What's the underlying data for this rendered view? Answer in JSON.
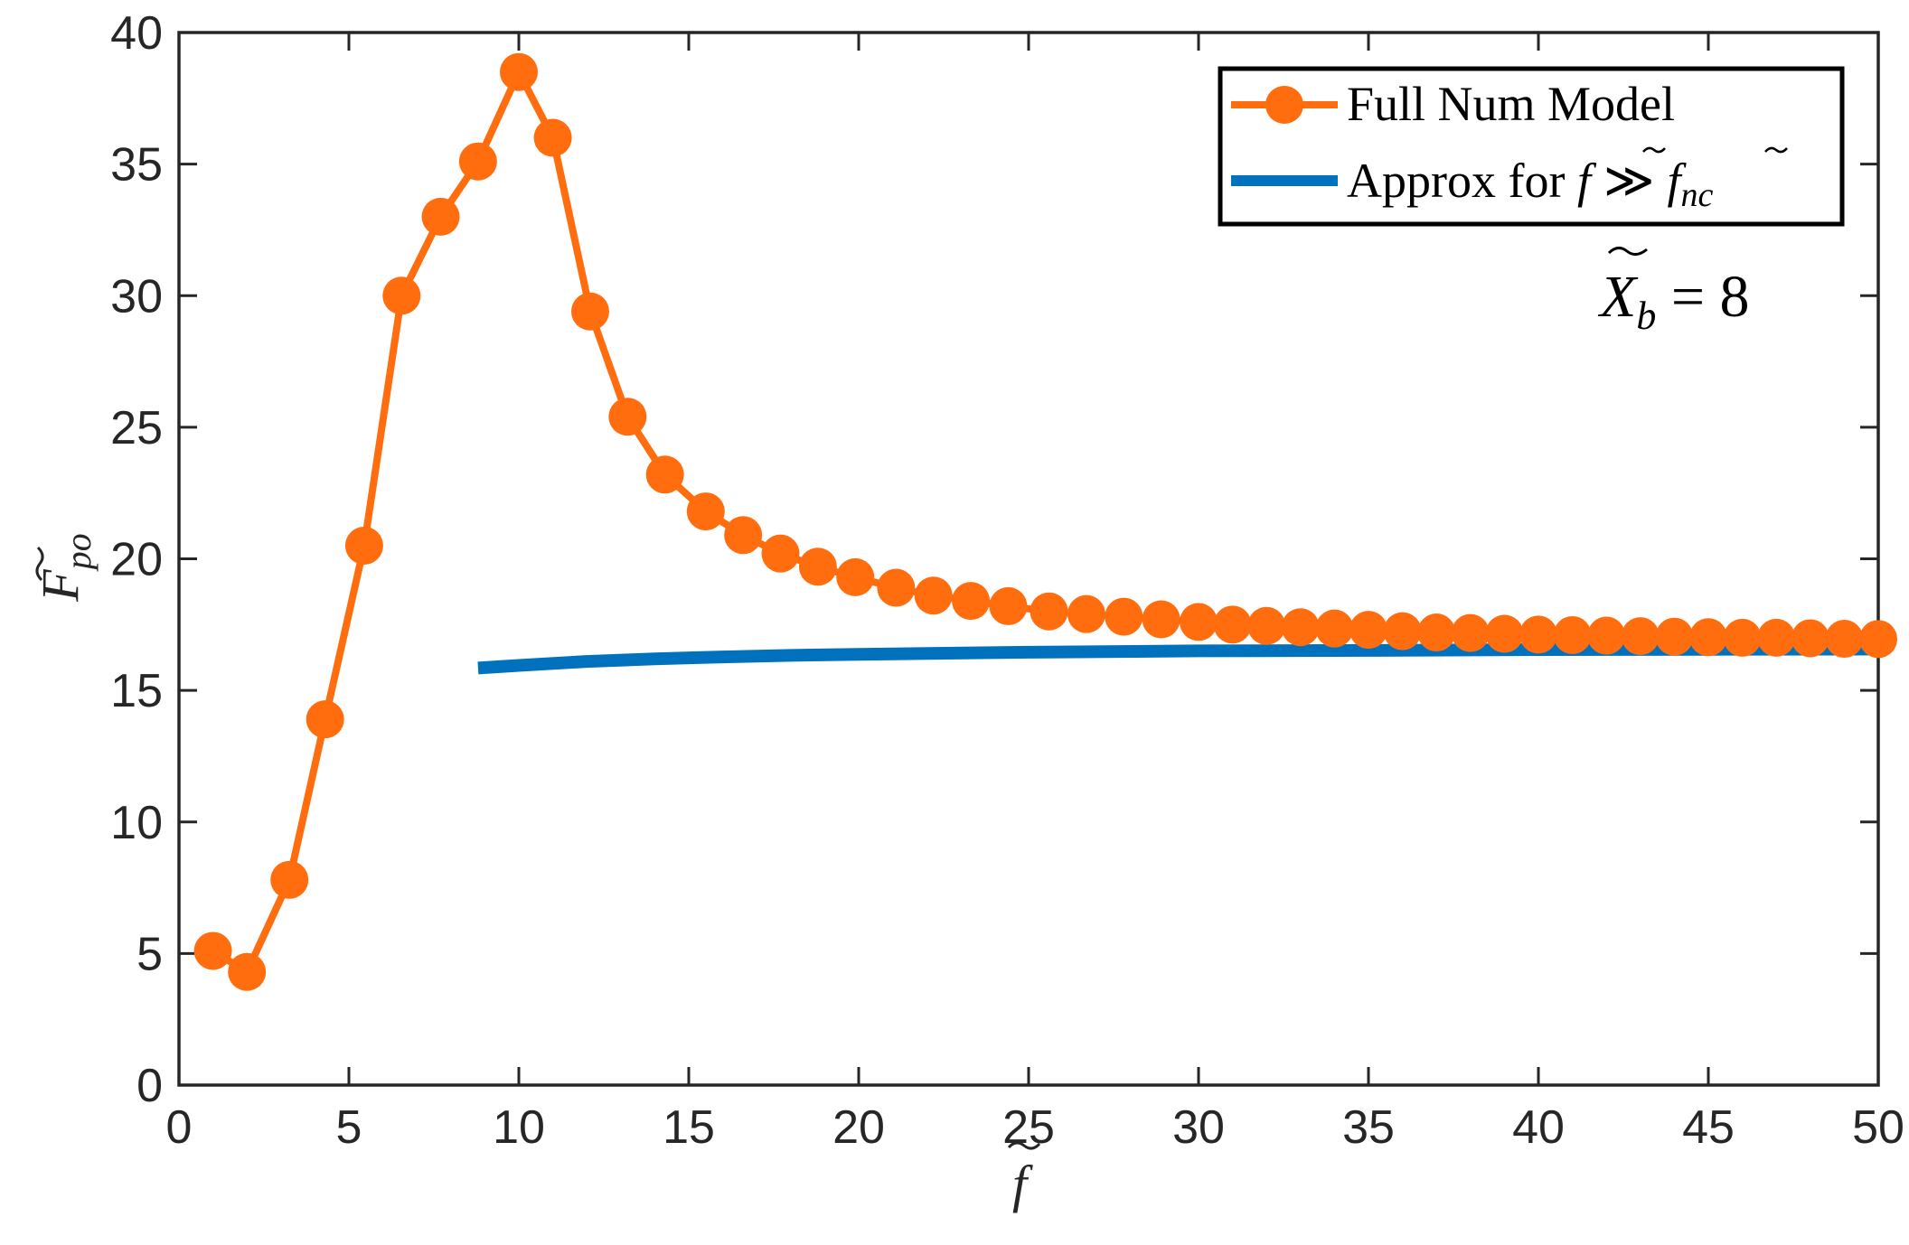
{
  "chart_data": {
    "type": "line",
    "xlim": [
      0,
      50
    ],
    "ylim": [
      0,
      40
    ],
    "x_ticks": [
      "0",
      "5",
      "10",
      "15",
      "20",
      "25",
      "30",
      "35",
      "40",
      "45",
      "50"
    ],
    "y_ticks": [
      "0",
      "5",
      "10",
      "15",
      "20",
      "25",
      "30",
      "35",
      "40"
    ],
    "xlabel": {
      "main": "f",
      "sub": ""
    },
    "ylabel": {
      "main": "F",
      "sub": "po"
    },
    "grid": false,
    "legend_position": "top-right",
    "legend": {
      "full": {
        "text": "Full Num Model"
      },
      "approx": {
        "prefix": "Approx for ",
        "f": "f",
        "rel": "≫",
        "f2": "f",
        "sub": "nc"
      }
    },
    "annotation": {
      "main": "X",
      "sub": "b",
      "rest": " = 8"
    },
    "series": [
      {
        "name": "Full Num Model",
        "color": "#ff6d0f",
        "marker": "circle",
        "x": [
          1,
          2,
          3.25,
          4.3,
          5.45,
          6.55,
          7.7,
          8.8,
          10,
          11.0,
          12.1,
          13.2,
          14.3,
          15.5,
          16.6,
          17.7,
          18.8,
          19.9,
          21.1,
          22.2,
          23.3,
          24.4,
          25.6,
          26.7,
          27.8,
          28.9,
          30.0,
          31.0,
          32.0,
          33.0,
          34.0,
          35.0,
          36.0,
          37.0,
          38.0,
          39.0,
          40.0,
          41.0,
          42.0,
          43.0,
          44.0,
          45.0,
          46.0,
          47.0,
          48.0,
          49.0,
          50.0
        ],
        "y": [
          5.1,
          4.3,
          7.8,
          13.9,
          20.5,
          30.0,
          33.0,
          35.1,
          38.5,
          36.0,
          29.4,
          25.4,
          23.2,
          21.8,
          20.9,
          20.2,
          19.7,
          19.3,
          18.9,
          18.6,
          18.4,
          18.2,
          18.0,
          17.9,
          17.8,
          17.7,
          17.6,
          17.5,
          17.45,
          17.4,
          17.35,
          17.3,
          17.25,
          17.2,
          17.18,
          17.15,
          17.12,
          17.1,
          17.08,
          17.06,
          17.04,
          17.02,
          17.0,
          17.0,
          16.98,
          16.96,
          16.95
        ]
      },
      {
        "name": "Approx for f ≫ f_nc",
        "color": "#0072bd",
        "marker": "none",
        "x": [
          8.8,
          10,
          12,
          14,
          16,
          18,
          20,
          25,
          30,
          35,
          40,
          45,
          50
        ],
        "y": [
          15.85,
          15.95,
          16.1,
          16.2,
          16.27,
          16.33,
          16.37,
          16.45,
          16.5,
          16.52,
          16.55,
          16.56,
          16.57
        ]
      }
    ]
  }
}
